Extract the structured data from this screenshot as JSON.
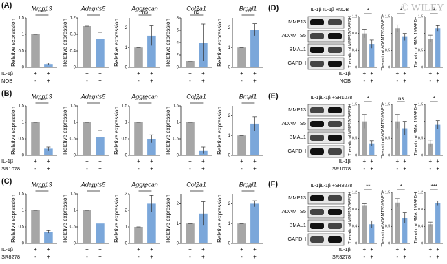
{
  "watermark": "© WILEY",
  "panels": [
    {
      "label": "(A)",
      "colors": [
        "#a6a6a6",
        "#7ba7da"
      ],
      "treatments": [
        {
          "name": "IL-1β",
          "signs": [
            "+",
            "+"
          ]
        },
        {
          "name": "NOB",
          "signs": [
            "-",
            "+"
          ]
        }
      ],
      "charts": [
        {
          "type": "bar",
          "title": "Mmp13",
          "ylabel": "Relative expression",
          "values": [
            1,
            0.1
          ],
          "errors": [
            0,
            0.03
          ],
          "ylim": [
            0,
            1.5
          ],
          "yticks": [
            0,
            0.5,
            1,
            1.5
          ],
          "significance": "****"
        },
        {
          "type": "bar",
          "title": "Adamts5",
          "ylabel": "Relative expression",
          "values": [
            1,
            0.7
          ],
          "errors": [
            0,
            0.15
          ],
          "ylim": [
            0,
            1.2
          ],
          "yticks": [
            0,
            0.4,
            0.8,
            1.2
          ],
          "significance": "*"
        },
        {
          "type": "bar",
          "title": "Aggrecan",
          "ylabel": "Relative expression",
          "values": [
            1,
            1.6
          ],
          "errors": [
            0,
            0.5
          ],
          "ylim": [
            0,
            2.5
          ],
          "yticks": [
            0,
            1,
            2
          ],
          "significance": "ns"
        },
        {
          "type": "bar",
          "title": "Col2a1",
          "ylabel": "Relative expression",
          "values": [
            1,
            4
          ],
          "errors": [
            0,
            3
          ],
          "ylim": [
            0,
            8
          ],
          "yticks": [
            0,
            2,
            4,
            6,
            8
          ],
          "significance": "ns"
        },
        {
          "type": "bar",
          "title": "Bmal1",
          "ylabel": "Relative expression",
          "values": [
            1,
            1.9
          ],
          "errors": [
            0,
            0.3
          ],
          "ylim": [
            0,
            2.5
          ],
          "yticks": [
            0,
            1,
            2
          ],
          "significance": "***"
        }
      ]
    },
    {
      "label": "(B)",
      "colors": [
        "#a6a6a6",
        "#7ba7da"
      ],
      "treatments": [
        {
          "name": "IL-1β",
          "signs": [
            "+",
            "+"
          ]
        },
        {
          "name": "SR1078",
          "signs": [
            "-",
            "+"
          ]
        }
      ],
      "charts": [
        {
          "type": "bar",
          "title": "Mmp13",
          "ylabel": "Relative expression",
          "values": [
            1,
            0.2
          ],
          "errors": [
            0,
            0.05
          ],
          "ylim": [
            0,
            1.5
          ],
          "yticks": [
            0,
            0.5,
            1,
            1.5
          ],
          "significance": "****"
        },
        {
          "type": "bar",
          "title": "Adamts5",
          "ylabel": "Relative expression",
          "values": [
            1,
            0.55
          ],
          "errors": [
            0,
            0.2
          ],
          "ylim": [
            0,
            1.5
          ],
          "yticks": [
            0,
            0.5,
            1,
            1.5
          ],
          "significance": "*"
        },
        {
          "type": "bar",
          "title": "Aggrecan",
          "ylabel": "Relative expression",
          "values": [
            1,
            0.5
          ],
          "errors": [
            0,
            0.12
          ],
          "ylim": [
            0,
            1.5
          ],
          "yticks": [
            0,
            0.5,
            1,
            1.5
          ],
          "significance": "**"
        },
        {
          "type": "bar",
          "title": "Col2a1",
          "ylabel": "Relative expression",
          "values": [
            1,
            0.15
          ],
          "errors": [
            0,
            0.1
          ],
          "ylim": [
            0,
            1.5
          ],
          "yticks": [
            0,
            0.5,
            1,
            1.5
          ],
          "significance": "***"
        },
        {
          "type": "bar",
          "title": "Bmal1",
          "ylabel": "Relative expression",
          "values": [
            1,
            1.6
          ],
          "errors": [
            0,
            0.35
          ],
          "ylim": [
            0,
            2.5
          ],
          "yticks": [
            0,
            1,
            2
          ],
          "significance": "*"
        }
      ]
    },
    {
      "label": "(C)",
      "colors": [
        "#a6a6a6",
        "#7ba7da"
      ],
      "treatments": [
        {
          "name": "IL-1β",
          "signs": [
            "+",
            "+"
          ]
        },
        {
          "name": "SR8278",
          "signs": [
            "-",
            "+"
          ]
        }
      ],
      "charts": [
        {
          "type": "bar",
          "title": "Mmp13",
          "ylabel": "Relative expression",
          "values": [
            1,
            0.35
          ],
          "errors": [
            0,
            0.04
          ],
          "ylim": [
            0,
            1.5
          ],
          "yticks": [
            0,
            0.5,
            1,
            1.5
          ],
          "significance": "****"
        },
        {
          "type": "bar",
          "title": "Adamts5",
          "ylabel": "Relative expression",
          "values": [
            1,
            0.6
          ],
          "errors": [
            0,
            0.08
          ],
          "ylim": [
            0,
            1.5
          ],
          "yticks": [
            0,
            0.5,
            1,
            1.5
          ],
          "significance": "**"
        },
        {
          "type": "bar",
          "title": "Aggrecan",
          "ylabel": "Relative expression",
          "values": [
            1,
            2.4
          ],
          "errors": [
            0,
            0.5
          ],
          "ylim": [
            0,
            3
          ],
          "yticks": [
            0,
            1,
            2,
            3
          ],
          "significance": "*"
        },
        {
          "type": "bar",
          "title": "Col2a1",
          "ylabel": "Relative expression",
          "values": [
            1,
            1.5
          ],
          "errors": [
            0,
            0.6
          ],
          "ylim": [
            0,
            2.5
          ],
          "yticks": [
            0,
            1,
            2
          ],
          "significance": "*"
        },
        {
          "type": "bar",
          "title": "Bmal1",
          "ylabel": "Relative expression",
          "values": [
            1,
            2
          ],
          "errors": [
            0,
            0.15
          ],
          "ylim": [
            0,
            2.5
          ],
          "yticks": [
            0,
            1,
            2
          ],
          "significance": "***"
        }
      ]
    },
    {
      "label": "(D)",
      "colors": [
        "#a6a6a6",
        "#7ba7da"
      ],
      "blot": {
        "lanes": [
          "IL-1β",
          "IL-1β +NOB"
        ],
        "proteins": [
          "MMP13",
          "ADAMTS5",
          "BMAL1",
          "GAPDH"
        ]
      },
      "treatments": [
        {
          "name": "IL-1β",
          "signs": [
            "+",
            "+"
          ]
        },
        {
          "name": "NOB",
          "signs": [
            "-",
            "+"
          ]
        }
      ],
      "charts": [
        {
          "type": "bar",
          "ylabel": "The ratio of MMP13/GAPDH",
          "values": [
            0.8,
            0.55
          ],
          "errors": [
            0.1,
            0.1
          ],
          "ylim": [
            0,
            1.2
          ],
          "yticks": [
            0,
            0.4,
            0.8,
            1.2
          ],
          "significance": "*"
        },
        {
          "type": "bar",
          "ylabel": "The ratio of ADAMTS5/GAPDH",
          "values": [
            1.15,
            0.9
          ],
          "errors": [
            0.1,
            0.1
          ],
          "ylim": [
            0,
            1.5
          ],
          "yticks": [
            0,
            0.5,
            1,
            1.5
          ],
          "significance": "*"
        },
        {
          "type": "bar",
          "ylabel": "The ratio of BMAL1/GAPDH",
          "values": [
            0.85,
            1.15
          ],
          "errors": [
            0.1,
            0.08
          ],
          "ylim": [
            0,
            1.5
          ],
          "yticks": [
            0,
            0.5,
            1,
            1.5
          ],
          "significance": "*"
        }
      ]
    },
    {
      "label": "(E)",
      "colors": [
        "#a6a6a6",
        "#7ba7da"
      ],
      "blot": {
        "lanes": [
          "IL-1β",
          "IL-1β +SR1078"
        ],
        "proteins": [
          "MMP13",
          "ADAMTS5",
          "BMAL1",
          "GAPDH"
        ]
      },
      "treatments": [
        {
          "name": "IL-1β",
          "signs": [
            "+",
            "+"
          ]
        },
        {
          "name": "SR1078",
          "signs": [
            "-",
            "+"
          ]
        }
      ],
      "charts": [
        {
          "type": "bar",
          "ylabel": "The ratio of MMP13/GAPDH",
          "values": [
            1,
            0.35
          ],
          "errors": [
            0.2,
            0.08
          ],
          "ylim": [
            0,
            1.5
          ],
          "yticks": [
            0,
            0.5,
            1,
            1.5
          ],
          "significance": "*"
        },
        {
          "type": "bar",
          "ylabel": "The ratio of ADAMTS5/GAPDH",
          "values": [
            1,
            0.8
          ],
          "errors": [
            0.2,
            0.2
          ],
          "ylim": [
            0,
            1.5
          ],
          "yticks": [
            0,
            0.5,
            1,
            1.5
          ],
          "significance": "ns"
        },
        {
          "type": "bar",
          "ylabel": "The ratio of BMAL1/GAPDH",
          "values": [
            0.35,
            0.9
          ],
          "errors": [
            0.1,
            0.12
          ],
          "ylim": [
            0,
            1.5
          ],
          "yticks": [
            0,
            0.5,
            1,
            1.5
          ],
          "significance": "*"
        }
      ]
    },
    {
      "label": "(F)",
      "colors": [
        "#a6a6a6",
        "#7ba7da"
      ],
      "blot": {
        "lanes": [
          "IL-1β",
          "IL-1β +SR8278"
        ],
        "proteins": [
          "MMP13",
          "ADAMTS5",
          "BMAL1",
          "GAPDH"
        ]
      },
      "treatments": [
        {
          "name": "IL-1β",
          "signs": [
            "+",
            "+"
          ]
        },
        {
          "name": "SR8278",
          "signs": [
            "-",
            "+"
          ]
        }
      ],
      "charts": [
        {
          "type": "bar",
          "ylabel": "The ratio of MMP13/GAPDH",
          "values": [
            0.9,
            0.45
          ],
          "errors": [
            0.03,
            0.08
          ],
          "ylim": [
            0,
            1.2
          ],
          "yticks": [
            0,
            0.4,
            0.8,
            1.2
          ],
          "significance": "**"
        },
        {
          "type": "bar",
          "ylabel": "The ratio of ADAMTS5/GAPDH",
          "values": [
            1.2,
            0.75
          ],
          "errors": [
            0.12,
            0.15
          ],
          "ylim": [
            0,
            1.5
          ],
          "yticks": [
            0,
            0.5,
            1,
            1.5
          ],
          "significance": "*"
        },
        {
          "type": "bar",
          "ylabel": "The ratio of BMAL1/GAPDH",
          "values": [
            0.45,
            0.95
          ],
          "errors": [
            0.05,
            0.05
          ],
          "ylim": [
            0,
            1.2
          ],
          "yticks": [
            0,
            0.4,
            0.8,
            1.2
          ],
          "significance": "***"
        }
      ]
    }
  ]
}
